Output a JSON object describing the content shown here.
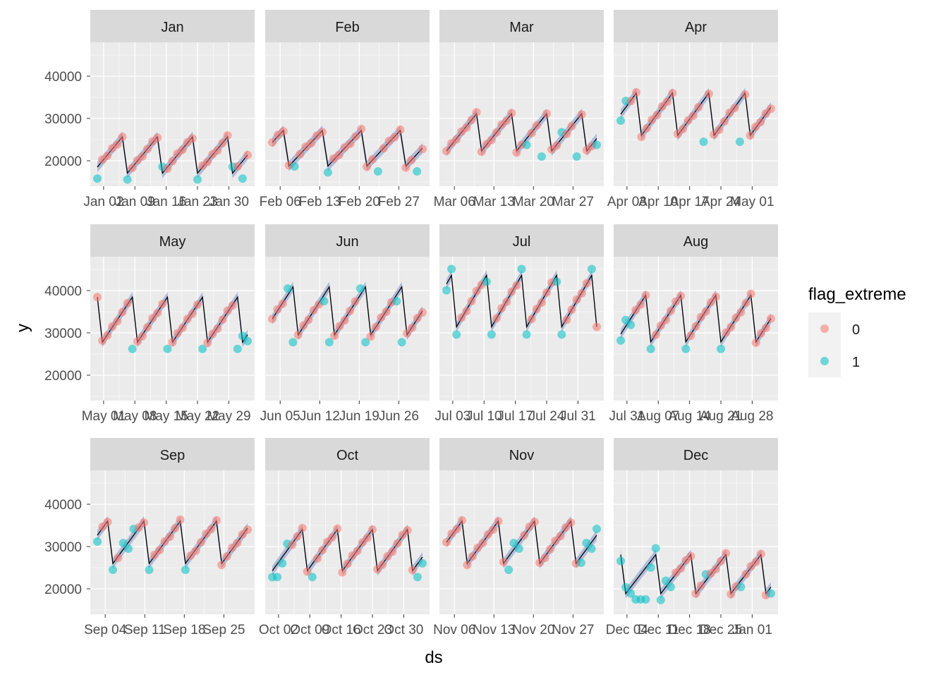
{
  "chart_data": {
    "type": "scatter",
    "title": "",
    "xlabel": "ds",
    "ylabel": "y",
    "ylim": [
      14000,
      48000
    ],
    "yticks": [
      20000,
      30000,
      40000
    ],
    "grid": true,
    "legend": {
      "title": "flag_extreme",
      "position": "right",
      "entries": [
        {
          "label": "0",
          "color": "#F8766D"
        },
        {
          "label": "1",
          "color": "#00BFC4"
        }
      ]
    },
    "colors": {
      "flag_0": "#F8766D",
      "flag_1": "#00BFC4",
      "forecast_line": "#000000",
      "interval_band": "#7F93C7",
      "panel_bg": "#EBEBEB",
      "strip_bg": "#D9D9D9"
    },
    "line_description": "black forecast line with grey-blue uncertainty band",
    "facets": [
      {
        "name": "Jan",
        "days": 31,
        "x_ticks": [
          "Jan 02",
          "Jan 09",
          "Jan 16",
          "Jan 23",
          "Jan 30"
        ],
        "y_min": 15800,
        "y_max": 26500,
        "flag_days_low": [
          1,
          30
        ],
        "flag_days_high": [
          7,
          14,
          21,
          28
        ]
      },
      {
        "name": "Feb",
        "days": 28,
        "x_ticks": [
          "Feb 06",
          "Feb 13",
          "Feb 20",
          "Feb 27"
        ],
        "y_min": 17500,
        "y_max": 28000,
        "flag_days_low": [
          20,
          27
        ],
        "flag_days_high": [
          5,
          11
        ]
      },
      {
        "name": "Mar",
        "days": 31,
        "x_ticks": [
          "Mar 06",
          "Mar 13",
          "Mar 20",
          "Mar 27"
        ],
        "y_min": 21000,
        "y_max": 32000,
        "flag_days_low": [
          20,
          27
        ],
        "flag_days_high": [
          17,
          24,
          31
        ]
      },
      {
        "name": "Apr",
        "days": 30,
        "x_ticks": [
          "Apr 03",
          "Apr 10",
          "Apr 17",
          "Apr 24",
          "May 01"
        ],
        "y_min": 24500,
        "y_max": 37000,
        "flag_days_low": [
          17,
          24
        ],
        "flag_days_high": [
          1,
          2
        ]
      },
      {
        "name": "May",
        "days": 31,
        "x_ticks": [
          "May 01",
          "May 08",
          "May 15",
          "May 22",
          "May 29"
        ],
        "y_min": 26200,
        "y_max": 39500,
        "flag_days_low": [
          8,
          15,
          22,
          29
        ],
        "flag_days_high": [
          30,
          31
        ]
      },
      {
        "name": "Jun",
        "days": 30,
        "x_ticks": [
          "Jun 05",
          "Jun 12",
          "Jun 19",
          "Jun 26"
        ],
        "y_min": 27800,
        "y_max": 42000,
        "flag_days_low": [
          5,
          12,
          19,
          26
        ],
        "flag_days_high": [
          4,
          11,
          18,
          25
        ]
      },
      {
        "name": "Jul",
        "days": 31,
        "x_ticks": [
          "Jul 03",
          "Jul 10",
          "Jul 17",
          "Jul 24",
          "Jul 31"
        ],
        "y_min": 29600,
        "y_max": 44800,
        "flag_days_low": [
          3,
          10,
          17,
          24
        ],
        "flag_days_high": [
          1,
          2,
          9,
          16,
          23,
          30
        ]
      },
      {
        "name": "Aug",
        "days": 31,
        "x_ticks": [
          "Jul 31",
          "Aug 07",
          "Aug 14",
          "Aug 21",
          "Aug 28"
        ],
        "y_min": 26200,
        "y_max": 40000,
        "flag_days_low": [
          7,
          14,
          21
        ],
        "flag_days_high": [
          1,
          2,
          3
        ]
      },
      {
        "name": "Sep",
        "days": 30,
        "x_ticks": [
          "Sep 04",
          "Sep 11",
          "Sep 18",
          "Sep 25"
        ],
        "y_min": 24500,
        "y_max": 37000,
        "flag_days_low": [
          4,
          11,
          18
        ],
        "flag_days_high": [
          1,
          6,
          7,
          8
        ]
      },
      {
        "name": "Oct",
        "days": 31,
        "x_ticks": [
          "Oct 02",
          "Oct 09",
          "Oct 16",
          "Oct 23",
          "Oct 30"
        ],
        "y_min": 22800,
        "y_max": 35000,
        "flag_days_low": [
          2,
          9,
          30
        ],
        "flag_days_high": [
          1,
          3,
          4,
          31
        ]
      },
      {
        "name": "Nov",
        "days": 30,
        "x_ticks": [
          "Nov 06",
          "Nov 13",
          "Nov 20",
          "Nov 27"
        ],
        "y_min": 24500,
        "y_max": 37000,
        "flag_days_low": [
          13
        ],
        "flag_days_high": [
          14,
          15,
          27,
          28,
          29,
          30
        ]
      },
      {
        "name": "Dec",
        "days": 31,
        "x_ticks": [
          "Dec 04",
          "Dec 11",
          "Dec 18",
          "Dec 25",
          "Jan 01"
        ],
        "y_min": 17500,
        "y_max": 29000,
        "flag_days_low": [
          4,
          5,
          6
        ],
        "flag_days_high": [
          1,
          2,
          3,
          7,
          8,
          9,
          10,
          11,
          18,
          25,
          31
        ]
      }
    ]
  }
}
